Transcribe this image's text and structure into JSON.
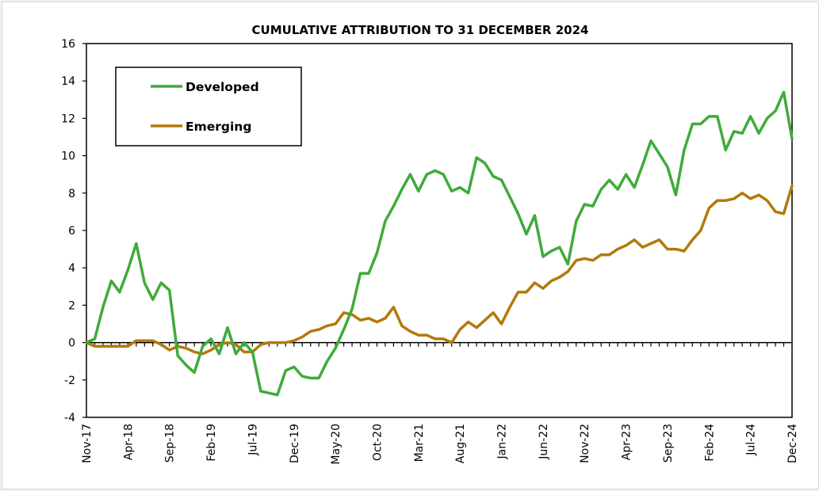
{
  "chart_data": {
    "type": "line",
    "title": "CUMULATIVE ATTRIBUTION TO 31 DECEMBER 2024",
    "xlabel": "",
    "ylabel": "",
    "ylim": [
      -4,
      16
    ],
    "yticks": [
      -4,
      -2,
      0,
      2,
      4,
      6,
      8,
      10,
      12,
      14,
      16
    ],
    "grid": false,
    "legend_position": "top-left",
    "x_start": "Nov-17",
    "x_end": "Dec-24",
    "x_frequency": "monthly",
    "xtick_labels": [
      "Nov-17",
      "Apr-18",
      "Sep-18",
      "Feb-19",
      "Jul-19",
      "Dec-19",
      "May-20",
      "Oct-20",
      "Mar-21",
      "Aug-21",
      "Jan-22",
      "Jun-22",
      "Nov-22",
      "Apr-23",
      "Sep-23",
      "Feb-24",
      "Jul-24",
      "Dec-24"
    ],
    "xtick_every_n_months": 5,
    "series": [
      {
        "name": "Developed",
        "color": "#3fab3a",
        "values": [
          0.0,
          0.2,
          1.9,
          3.3,
          2.7,
          3.9,
          5.3,
          3.2,
          2.3,
          3.2,
          2.8,
          -0.7,
          -1.2,
          -1.6,
          -0.2,
          0.2,
          -0.6,
          0.8,
          -0.6,
          0.0,
          -0.5,
          -2.6,
          -2.7,
          -2.8,
          -1.5,
          -1.3,
          -1.8,
          -1.9,
          -1.9,
          -1.0,
          -0.3,
          0.7,
          1.8,
          3.7,
          3.7,
          4.8,
          6.5,
          7.3,
          8.2,
          9.0,
          8.1,
          9.0,
          9.2,
          9.0,
          8.1,
          8.3,
          8.0,
          9.9,
          9.6,
          8.9,
          8.7,
          7.8,
          6.9,
          5.8,
          6.8,
          4.6,
          4.9,
          5.1,
          4.2,
          6.5,
          7.4,
          7.3,
          8.2,
          8.7,
          8.2,
          9.0,
          8.3,
          9.5,
          10.8,
          10.1,
          9.4,
          7.9,
          10.3,
          11.7,
          11.7,
          12.1,
          12.1,
          10.3,
          11.3,
          11.2,
          12.1,
          11.2,
          12.0,
          12.4,
          13.4,
          10.9
        ]
      },
      {
        "name": "Emerging",
        "color": "#b3790a",
        "values": [
          0.0,
          -0.2,
          -0.2,
          -0.2,
          -0.2,
          -0.2,
          0.1,
          0.1,
          0.1,
          -0.1,
          -0.4,
          -0.2,
          -0.3,
          -0.5,
          -0.6,
          -0.4,
          -0.1,
          0.0,
          -0.1,
          -0.5,
          -0.5,
          -0.1,
          0.0,
          0.0,
          0.0,
          0.1,
          0.3,
          0.6,
          0.7,
          0.9,
          1.0,
          1.6,
          1.5,
          1.2,
          1.3,
          1.1,
          1.3,
          1.9,
          0.9,
          0.6,
          0.4,
          0.4,
          0.2,
          0.2,
          0.0,
          0.7,
          1.1,
          0.8,
          1.2,
          1.6,
          1.0,
          1.9,
          2.7,
          2.7,
          3.2,
          2.9,
          3.3,
          3.5,
          3.8,
          4.4,
          4.5,
          4.4,
          4.7,
          4.7,
          5.0,
          5.2,
          5.5,
          5.1,
          5.3,
          5.5,
          5.0,
          5.0,
          4.9,
          5.5,
          6.0,
          7.2,
          7.6,
          7.6,
          7.7,
          8.0,
          7.7,
          7.9,
          7.6,
          7.0,
          6.9,
          8.4
        ]
      }
    ]
  }
}
